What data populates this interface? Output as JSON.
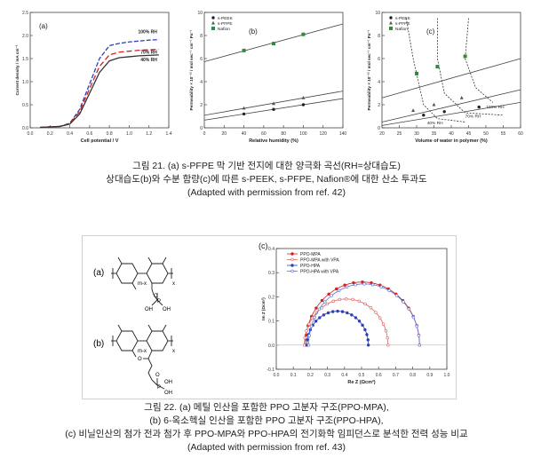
{
  "figure21": {
    "chart_a": {
      "type": "line",
      "panel_label": "(a)",
      "xlabel": "Cell potential / V",
      "ylabel": "Current density / mA cm⁻²",
      "xticks": [
        "0.0",
        "0.2",
        "0.4",
        "0.6",
        "0.8",
        "1.0",
        "1.2",
        "1.4"
      ],
      "yticks": [
        "0.0",
        "0.5",
        "1.0",
        "1.5",
        "2.0",
        "2.5"
      ],
      "xlim": [
        0,
        1.4
      ],
      "ylim": [
        0,
        2.5
      ],
      "series": [
        {
          "name": "100% RH",
          "color": "#2b3fbf",
          "dash": "5,2",
          "x": [
            0.1,
            0.3,
            0.4,
            0.5,
            0.6,
            0.7,
            0.8,
            0.9,
            1.0,
            1.1,
            1.2,
            1.3
          ],
          "y": [
            0.01,
            0.03,
            0.1,
            0.4,
            0.95,
            1.5,
            1.78,
            1.83,
            1.86,
            1.88,
            1.9,
            1.91
          ]
        },
        {
          "name": "70% RH",
          "color": "#d42020",
          "dash": "6,3",
          "x": [
            0.1,
            0.3,
            0.4,
            0.5,
            0.6,
            0.7,
            0.8,
            0.9,
            1.0,
            1.1,
            1.2,
            1.3
          ],
          "y": [
            0.01,
            0.03,
            0.09,
            0.35,
            0.85,
            1.33,
            1.58,
            1.64,
            1.66,
            1.68,
            1.69,
            1.7
          ]
        },
        {
          "name": "40% RH",
          "color": "#333333",
          "dash": "",
          "x": [
            0.1,
            0.3,
            0.4,
            0.5,
            0.6,
            0.7,
            0.8,
            0.9,
            1.0,
            1.1,
            1.2,
            1.3
          ],
          "y": [
            0.01,
            0.03,
            0.08,
            0.3,
            0.75,
            1.2,
            1.45,
            1.52,
            1.54,
            1.56,
            1.57,
            1.58
          ]
        }
      ]
    },
    "chart_b": {
      "type": "scatter",
      "panel_label": "(b)",
      "xlabel": "Relative humidity (%)",
      "ylabel": "Permeability × 10⁻¹² / mol sec⁻¹ cm⁻¹ Pa⁻¹",
      "xticks": [
        "0",
        "20",
        "40",
        "60",
        "80",
        "100",
        "120",
        "140"
      ],
      "yticks": [
        "0",
        "2",
        "4",
        "6",
        "8",
        "10"
      ],
      "xlim": [
        0,
        140
      ],
      "ylim": [
        0,
        10
      ],
      "legend": [
        "s-PEEK",
        "s-PFPE",
        "Nafion"
      ],
      "series": [
        {
          "name": "s-PEEK",
          "color": "#222",
          "marker": "circle",
          "x": [
            40,
            70,
            100
          ],
          "y": [
            1.2,
            1.6,
            2.0
          ]
        },
        {
          "name": "s-PFPE",
          "color": "#555",
          "marker": "triangle",
          "x": [
            40,
            70,
            100
          ],
          "y": [
            1.7,
            2.1,
            2.6
          ]
        },
        {
          "name": "Nafion",
          "color": "#2e8b3a",
          "marker": "square",
          "x": [
            40,
            70,
            100
          ],
          "y": [
            6.7,
            7.3,
            8.1
          ]
        }
      ]
    },
    "chart_c": {
      "type": "scatter",
      "panel_label": "(c)",
      "xlabel": "Volume of water in polymer (%)",
      "ylabel": "Permeability × 10⁻¹² / mol sec⁻¹ cm⁻¹ Pa⁻¹",
      "xticks": [
        "20",
        "25",
        "30",
        "35",
        "40",
        "45",
        "50",
        "55",
        "60"
      ],
      "yticks": [
        "0",
        "2",
        "4",
        "6",
        "8",
        "10"
      ],
      "xlim": [
        20,
        60
      ],
      "ylim": [
        0,
        10
      ],
      "legend": [
        "s-PEEK",
        "s-PFPE",
        "Nafion"
      ],
      "annotations": [
        "100% RH",
        "70% RH",
        "40% RH"
      ],
      "series": [
        {
          "name": "s-PEEK",
          "color": "#222",
          "marker": "circle",
          "x": [
            32,
            38,
            48
          ],
          "y": [
            1.1,
            1.4,
            1.8
          ]
        },
        {
          "name": "s-PFPE",
          "color": "#555",
          "marker": "triangle",
          "x": [
            29,
            35,
            43
          ],
          "y": [
            1.5,
            2.0,
            2.6
          ]
        },
        {
          "name": "Nafion",
          "color": "#2e8b3a",
          "marker": "square",
          "x": [
            30,
            36,
            44
          ],
          "y": [
            4.7,
            5.3,
            6.2
          ]
        }
      ]
    },
    "caption": [
      "그림 21. (a) s-PFPE 막 기반 전지에 대한 양극화 곡선(RH=상대습도)",
      "상대습도(b)와 수분 함량(c)에 따른 s-PEEK, s-PFPE, Nafion®에 대한 산소 투과도",
      "(Adapted with permission from ref. 42)"
    ]
  },
  "figure22": {
    "label_a": "(a)",
    "label_b": "(b)",
    "label_c": "(c)",
    "struct_a": {
      "sub1": "m-x",
      "sub2": "x",
      "grp1": "O",
      "grp2": "P",
      "grp3": "OH",
      "grp4": "OH"
    },
    "struct_b": {
      "sub1": "m-x",
      "sub2": "x",
      "grp1": "O",
      "grp2": "P",
      "grp3": "OH",
      "grp4": "OH",
      "grp5": "O"
    },
    "chart_c": {
      "type": "scatter",
      "xlabel": "Re Z (Ωcm²)",
      "ylabel": "Im Z (Ωcm²)",
      "xticks": [
        "0.0",
        "0.1",
        "0.2",
        "0.3",
        "0.4",
        "0.5",
        "0.6",
        "0.7",
        "0.8",
        "0.9",
        "1.0"
      ],
      "yticks": [
        "-0.1",
        "0.0",
        "0.1",
        "0.2",
        "0.3",
        "0.4"
      ],
      "xlim": [
        0,
        1.0
      ],
      "ylim": [
        -0.1,
        0.4
      ],
      "legend": [
        "PPO-MPA",
        "PPO-MPA with VPA",
        "PPO-HPA",
        "PPO-HPA with VPA"
      ],
      "series": [
        {
          "name": "PPO-MPA",
          "color": "#d42020",
          "fill": true,
          "cx": 0.505,
          "r": 0.335,
          "start": 0.17
        },
        {
          "name": "PPO-MPA with VPA",
          "color": "#e06060",
          "fill": false,
          "cx": 0.41,
          "r": 0.245,
          "start": 0.165
        },
        {
          "name": "PPO-HPA",
          "color": "#2b3fbf",
          "fill": true,
          "cx": 0.36,
          "r": 0.18,
          "start": 0.18
        },
        {
          "name": "PPO-HPA with VPA",
          "color": "#6070d0",
          "fill": false,
          "cx": 0.515,
          "r": 0.325,
          "start": 0.19
        }
      ]
    },
    "caption": [
      "그림 22. (a) 메틸 인산을 포함한 PPO 고분자 구조(PPO-MPA),",
      "(b) 6-옥소헥실 인산을 포함한 PPO 고분자 구조(PPO-HPA),",
      "(c) 비닐인산의 첨가 전과 첨가 후 PPO-MPA와 PPO-HPA의 전기화학 임피던스로 분석한 전력 성능 비교",
      "(Adapted with permission from ref. 43)"
    ]
  }
}
